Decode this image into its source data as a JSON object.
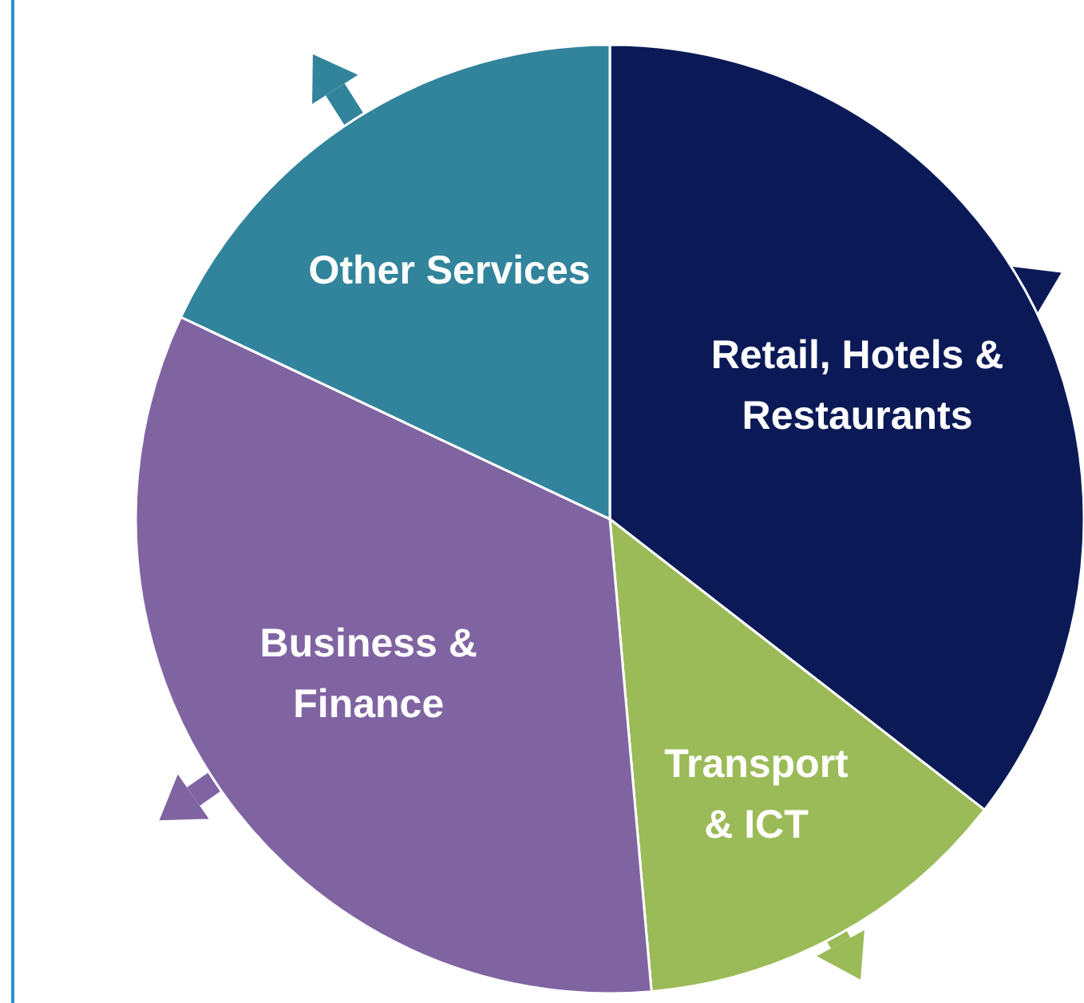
{
  "chart_data": {
    "type": "pie",
    "categories": [
      "Retail, Hotels & Restaurants",
      "Transport & ICT",
      "Business & Finance",
      "Other Services"
    ],
    "values": [
      35.5,
      13.1,
      33.4,
      18.0
    ],
    "colors": [
      "#0b1a57",
      "#9bbb59",
      "#8064a2",
      "#31849b"
    ]
  }
}
